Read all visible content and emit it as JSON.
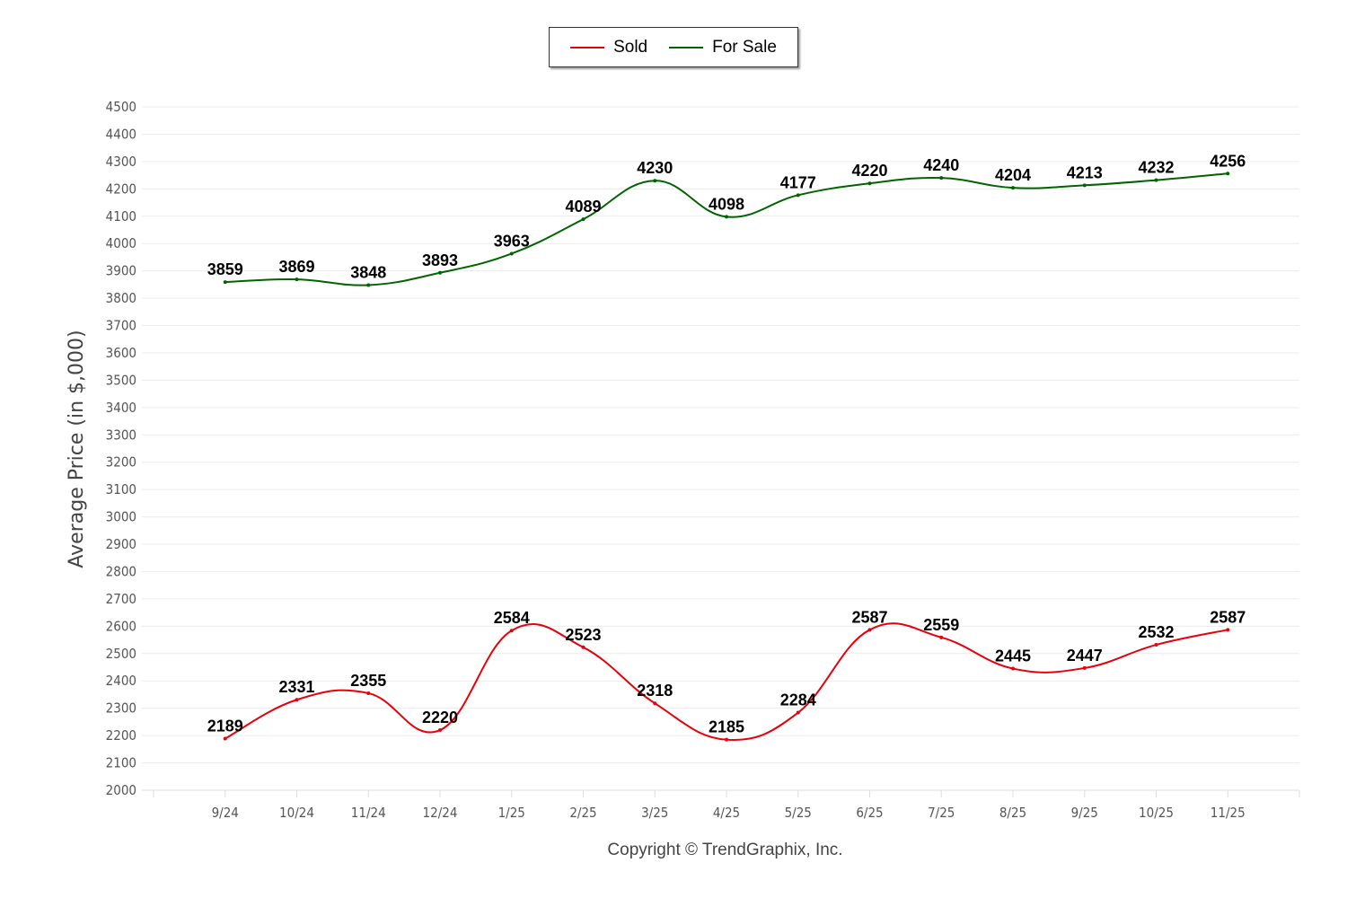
{
  "chart_data": {
    "type": "line",
    "title": "",
    "xlabel": "",
    "ylabel": "Average Price (in $,000)",
    "ylim": [
      2000,
      4500
    ],
    "ytick_step": 100,
    "grid": true,
    "legend_placement": "top-center",
    "categories": [
      "9/24",
      "10/24",
      "11/24",
      "12/24",
      "1/25",
      "2/25",
      "3/25",
      "4/25",
      "5/25",
      "6/25",
      "7/25",
      "8/25",
      "9/25",
      "10/25",
      "11/25"
    ],
    "series": [
      {
        "name": "Sold",
        "color": "#e8000b",
        "values": [
          2189,
          2331,
          2355,
          2220,
          2584,
          2523,
          2318,
          2185,
          2284,
          2587,
          2559,
          2445,
          2447,
          2532,
          2587
        ]
      },
      {
        "name": "For Sale",
        "color": "#006400",
        "values": [
          3859,
          3869,
          3848,
          3893,
          3963,
          4089,
          4230,
          4098,
          4177,
          4220,
          4240,
          4204,
          4213,
          4232,
          4256
        ]
      }
    ]
  },
  "footer": {
    "copyright": "Copyright © TrendGraphix, Inc."
  }
}
